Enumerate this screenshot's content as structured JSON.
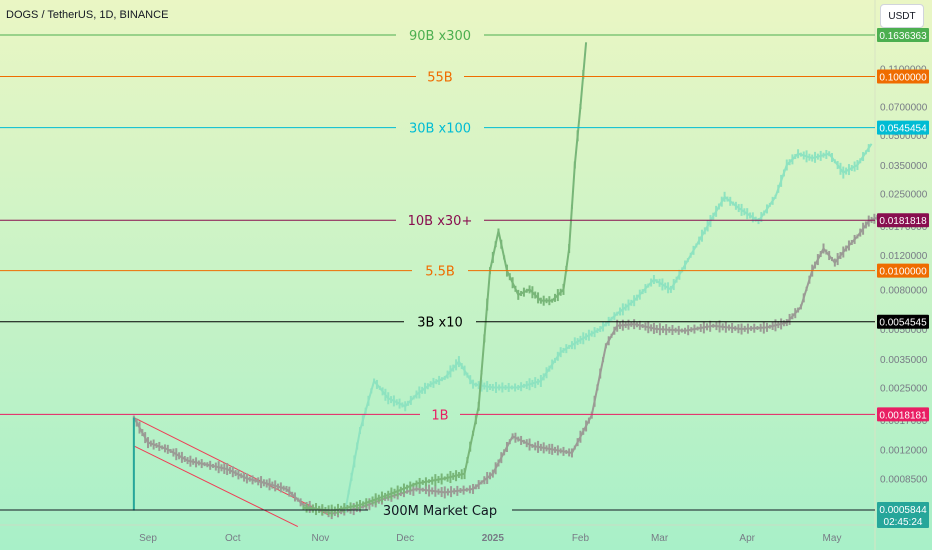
{
  "header": {
    "title": "DOGS / TetherUS, 1D, BINANCE",
    "unit_button": "USDT"
  },
  "colors": {
    "bg_top": "#eaf6c4",
    "bg_bottom": "#a8f0c8",
    "candle_grey": "#9b9b95",
    "candle_teal": "#8ee3c0",
    "candle_green": "#78b678"
  },
  "chart_data": {
    "type": "line",
    "title": "DOGS / TetherUS, 1D, BINANCE",
    "yscale": "log",
    "ylim": [
      0.000545,
      0.19
    ],
    "x_ticks": [
      "Sep",
      "Oct",
      "Nov",
      "Dec",
      "2025",
      "Feb",
      "Mar",
      "Apr",
      "May"
    ],
    "y_ticks": [
      "0.1100000",
      "0.0700000",
      "0.0500000",
      "0.0350000",
      "0.0250000",
      "0.0170000",
      "0.0120000",
      "0.0080000",
      "0.0050000",
      "0.0035000",
      "0.0025000",
      "0.0017000",
      "0.0012000",
      "0.0008500",
      "0.0005844"
    ],
    "levels": [
      {
        "label": "90B x300",
        "price": "0.1636363",
        "color": "#4caf50"
      },
      {
        "label": "55B",
        "price": "0.1000000",
        "color": "#ef6c00"
      },
      {
        "label": "30B x100",
        "price": "0.0545454",
        "color": "#00bcd4"
      },
      {
        "label": "10B x30+",
        "price": "0.0181818",
        "color": "#880e4f"
      },
      {
        "label": "5.5B",
        "price": "0.0100000",
        "color": "#ef6c00"
      },
      {
        "label": "3B x10",
        "price": "0.0054545",
        "color": "#000000"
      },
      {
        "label": "1B",
        "price": "0.0018181",
        "color": "#e91e63"
      },
      {
        "label": "300M Market Cap",
        "price": "0.0005844",
        "color": "#131722"
      }
    ],
    "last_price": {
      "price": "0.0005844",
      "countdown": "02:45:24",
      "color": "#26a69a"
    },
    "series": [
      {
        "name": "",
        "color": "#9b9b95",
        "points": [
          [
            "2024-08-27",
            0.00175
          ],
          [
            "2024-09-01",
            0.0013
          ],
          [
            "2024-09-08",
            0.0012
          ],
          [
            "2024-09-15",
            0.00105
          ],
          [
            "2024-09-22",
            0.001
          ],
          [
            "2024-09-29",
            0.00095
          ],
          [
            "2024-10-06",
            0.00085
          ],
          [
            "2024-10-13",
            0.0008
          ],
          [
            "2024-10-20",
            0.00075
          ],
          [
            "2024-10-26",
            0.00062
          ],
          [
            "2024-11-05",
            0.00056
          ],
          [
            "2024-11-15",
            0.0006
          ],
          [
            "2024-11-25",
            0.00068
          ],
          [
            "2024-12-05",
            0.00075
          ],
          [
            "2024-12-15",
            0.00072
          ],
          [
            "2024-12-25",
            0.00075
          ],
          [
            "2025-01-01",
            0.0009
          ],
          [
            "2025-01-08",
            0.0014
          ],
          [
            "2025-01-15",
            0.00125
          ],
          [
            "2025-01-22",
            0.0012
          ],
          [
            "2025-01-29",
            0.00115
          ],
          [
            "2025-02-05",
            0.0018
          ],
          [
            "2025-02-10",
            0.0041
          ],
          [
            "2025-02-14",
            0.0052
          ],
          [
            "2025-02-20",
            0.0053
          ],
          [
            "2025-02-28",
            0.005
          ],
          [
            "2025-03-10",
            0.0049
          ],
          [
            "2025-03-20",
            0.0052
          ],
          [
            "2025-03-30",
            0.005
          ],
          [
            "2025-04-08",
            0.0051
          ],
          [
            "2025-04-15",
            0.0054
          ],
          [
            "2025-04-20",
            0.0065
          ],
          [
            "2025-04-24",
            0.01
          ],
          [
            "2025-04-28",
            0.013
          ],
          [
            "2025-05-02",
            0.011
          ],
          [
            "2025-05-06",
            0.013
          ],
          [
            "2025-05-10",
            0.015
          ],
          [
            "2025-05-14",
            0.018
          ],
          [
            "2025-05-18",
            0.019
          ]
        ]
      },
      {
        "name": "",
        "color": "#8ee3c0",
        "points": [
          [
            "2024-11-10",
            0.0006
          ],
          [
            "2024-11-15",
            0.0015
          ],
          [
            "2024-11-20",
            0.0027
          ],
          [
            "2024-11-25",
            0.0022
          ],
          [
            "2024-12-01",
            0.002
          ],
          [
            "2024-12-05",
            0.0023
          ],
          [
            "2024-12-10",
            0.0026
          ],
          [
            "2024-12-15",
            0.0028
          ],
          [
            "2024-12-20",
            0.0034
          ],
          [
            "2024-12-25",
            0.0026
          ],
          [
            "2025-01-01",
            0.0025
          ],
          [
            "2025-01-10",
            0.0025
          ],
          [
            "2025-01-18",
            0.0027
          ],
          [
            "2025-01-25",
            0.0038
          ],
          [
            "2025-02-01",
            0.0044
          ],
          [
            "2025-02-08",
            0.005
          ],
          [
            "2025-02-14",
            0.006
          ],
          [
            "2025-02-20",
            0.007
          ],
          [
            "2025-02-27",
            0.009
          ],
          [
            "2025-03-05",
            0.008
          ],
          [
            "2025-03-12",
            0.012
          ],
          [
            "2025-03-19",
            0.018
          ],
          [
            "2025-03-24",
            0.024
          ],
          [
            "2025-03-29",
            0.021
          ],
          [
            "2025-04-05",
            0.018
          ],
          [
            "2025-04-11",
            0.024
          ],
          [
            "2025-04-15",
            0.035
          ],
          [
            "2025-04-19",
            0.04
          ],
          [
            "2025-04-24",
            0.038
          ],
          [
            "2025-04-30",
            0.04
          ],
          [
            "2025-05-05",
            0.032
          ],
          [
            "2025-05-10",
            0.035
          ],
          [
            "2025-05-15",
            0.045
          ]
        ]
      },
      {
        "name": "",
        "color": "#78b678",
        "points": [
          [
            "2024-10-26",
            0.0006
          ],
          [
            "2024-11-05",
            0.00058
          ],
          [
            "2024-11-15",
            0.00062
          ],
          [
            "2024-11-25",
            0.0007
          ],
          [
            "2024-12-05",
            0.0008
          ],
          [
            "2024-12-15",
            0.00085
          ],
          [
            "2024-12-22",
            0.0009
          ],
          [
            "2024-12-27",
            0.002
          ],
          [
            "2024-12-31",
            0.01
          ],
          [
            "2025-01-03",
            0.016
          ],
          [
            "2025-01-06",
            0.01
          ],
          [
            "2025-01-10",
            0.0075
          ],
          [
            "2025-01-14",
            0.008
          ],
          [
            "2025-01-18",
            0.007
          ],
          [
            "2025-01-22",
            0.007
          ],
          [
            "2025-01-26",
            0.008
          ],
          [
            "2025-01-28",
            0.013
          ],
          [
            "2025-01-30",
            0.035
          ],
          [
            "2025-02-01",
            0.07
          ],
          [
            "2025-02-03",
            0.15
          ]
        ]
      }
    ],
    "channel_color": "#ef3d55"
  }
}
